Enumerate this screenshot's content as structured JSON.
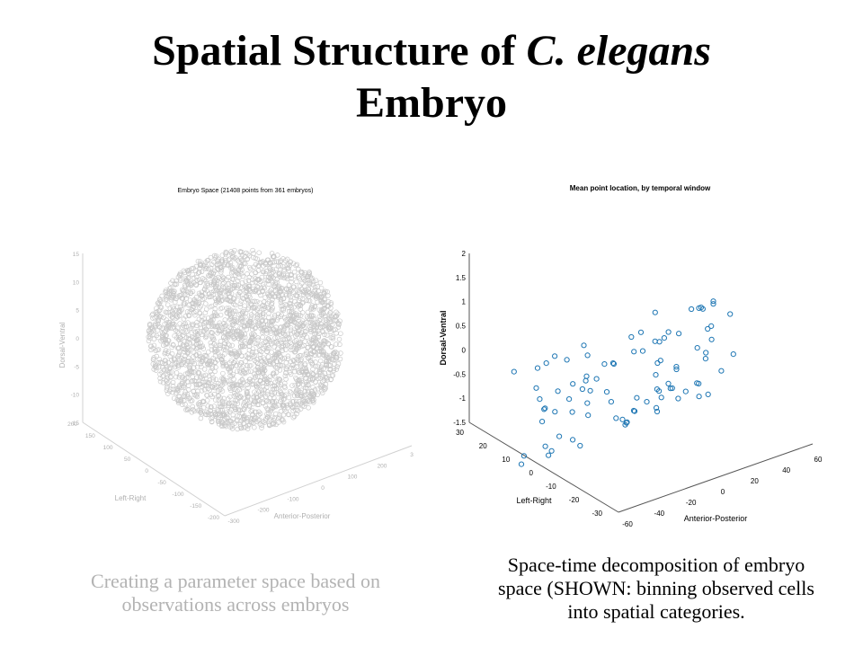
{
  "slide": {
    "title_line1_prefix": "Spatial Structure of ",
    "title_line1_italic": "C. elegans",
    "title_line2": "Embryo",
    "caption_left": "Creating a parameter space based on observations across embryos",
    "caption_right": "Space-time decomposition of embryo space (SHOWN: binning observed cells into spatial categories."
  },
  "chart_data": [
    {
      "type": "scatter",
      "title": "Embryo Space (21408 points from 361 embryos)",
      "xlabel": "Anterior-Posterior",
      "ylabel": "Left-Right",
      "zlabel": "Dorsal-Ventral",
      "z_ticks": [
        "15",
        "10",
        "5",
        "0",
        "-5",
        "-10",
        "-15"
      ],
      "y_ticks": [
        "200",
        "150",
        "100",
        "50",
        "0",
        "-50",
        "-100",
        "-150",
        "-200"
      ],
      "x_ticks": [
        "-300",
        "-200",
        "-100",
        "0",
        "100",
        "200",
        "3"
      ],
      "marker_color": "#c8c8c8",
      "axis_color": "#d0d0d0",
      "text_color": "#b0b0b0",
      "point_count_note": "21408 points",
      "shape": "dense ellipsoidal cloud"
    },
    {
      "type": "scatter",
      "title": "Mean point location, by temporal window",
      "xlabel": "Anterior-Posterior",
      "ylabel": "Left-Right",
      "zlabel": "Dorsal-Ventral",
      "z_ticks": [
        "2",
        "1.5",
        "1",
        "0.5",
        "0",
        "-0.5",
        "-1",
        "-1.5"
      ],
      "y_ticks": [
        "30",
        "20",
        "10",
        "0",
        "-10",
        "-20",
        "-30"
      ],
      "x_ticks": [
        "-60",
        "-40",
        "-20",
        "0",
        "20",
        "40",
        "60"
      ],
      "marker_color": "#1f77b4",
      "axis_color": "#555555",
      "text_color": "#000000"
    }
  ]
}
